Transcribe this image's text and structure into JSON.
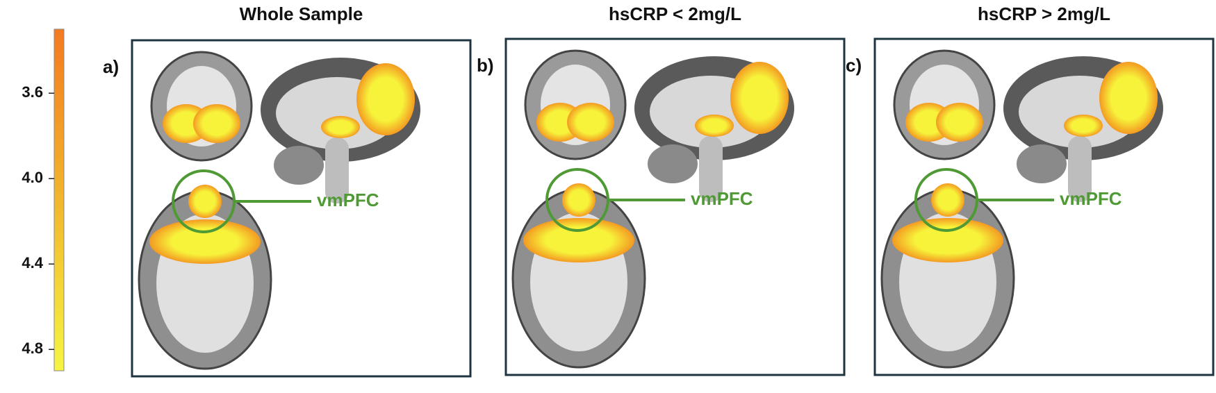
{
  "colorbar": {
    "lim": [
      3.3,
      4.9
    ],
    "ticks": [
      3.6,
      {
        "value": 4,
        "label": "4.0"
      },
      4.4,
      4.8
    ]
  },
  "panels": [
    {
      "label": "a)",
      "title": "Whole Sample",
      "annotation": "vmPFC"
    },
    {
      "label": "b)",
      "title": "hsCRP < 2mg/L",
      "annotation": "vmPFC"
    },
    {
      "label": "c)",
      "title": "hsCRP > 2mg/L",
      "annotation": "vmPFC"
    }
  ]
}
